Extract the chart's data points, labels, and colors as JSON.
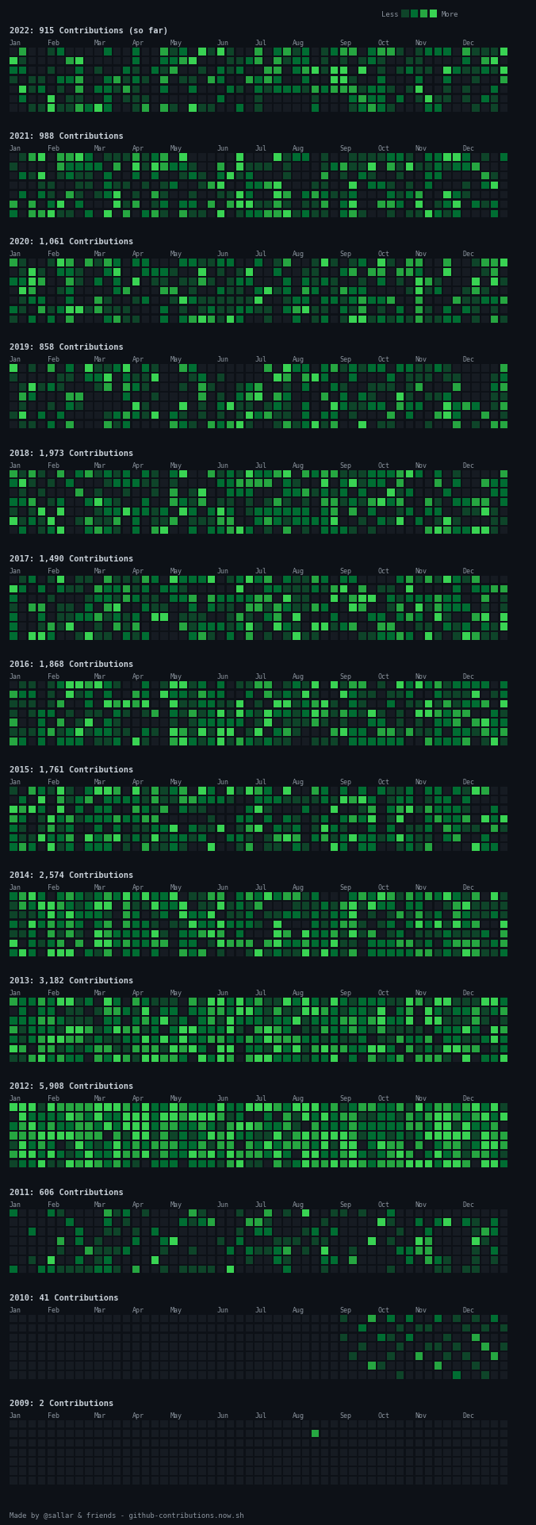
{
  "bg_color": "#0d1117",
  "cell_bg": "#161b22",
  "text_color": "#c9d1d9",
  "title_color": "#c9d1d9",
  "month_label_color": "#8b949e",
  "footer_color": "#8b949e",
  "colors": [
    "#161b22",
    "#0e4429",
    "#006d32",
    "#26a641",
    "#39d353"
  ],
  "legend_colors": [
    "#0e4429",
    "#006d32",
    "#26a641",
    "#39d353"
  ],
  "years": [
    {
      "year": 2022,
      "label": "2022: 915 Contributions (so far)",
      "seed": 42,
      "weights": [
        0.42,
        0.22,
        0.2,
        0.1,
        0.06
      ]
    },
    {
      "year": 2021,
      "label": "2021: 988 Contributions",
      "seed": 43,
      "weights": [
        0.4,
        0.22,
        0.2,
        0.11,
        0.07
      ]
    },
    {
      "year": 2020,
      "label": "2020: 1,061 Contributions",
      "seed": 44,
      "weights": [
        0.38,
        0.22,
        0.22,
        0.11,
        0.07
      ]
    },
    {
      "year": 2019,
      "label": "2019: 858 Contributions",
      "seed": 45,
      "weights": [
        0.45,
        0.22,
        0.18,
        0.1,
        0.05
      ]
    },
    {
      "year": 2018,
      "label": "2018: 1,973 Contributions",
      "seed": 46,
      "weights": [
        0.28,
        0.22,
        0.26,
        0.14,
        0.1
      ]
    },
    {
      "year": 2017,
      "label": "2017: 1,490 Contributions",
      "seed": 47,
      "weights": [
        0.35,
        0.22,
        0.24,
        0.12,
        0.07
      ]
    },
    {
      "year": 2016,
      "label": "2016: 1,868 Contributions",
      "seed": 48,
      "weights": [
        0.28,
        0.22,
        0.26,
        0.14,
        0.1
      ]
    },
    {
      "year": 2015,
      "label": "2015: 1,761 Contributions",
      "seed": 49,
      "weights": [
        0.3,
        0.22,
        0.25,
        0.13,
        0.1
      ]
    },
    {
      "year": 2014,
      "label": "2014: 2,574 Contributions",
      "seed": 50,
      "weights": [
        0.18,
        0.2,
        0.3,
        0.18,
        0.14
      ]
    },
    {
      "year": 2013,
      "label": "2013: 3,182 Contributions",
      "seed": 51,
      "weights": [
        0.1,
        0.18,
        0.32,
        0.22,
        0.18
      ]
    },
    {
      "year": 2012,
      "label": "2012: 5,908 Contributions",
      "seed": 52,
      "weights": [
        0.04,
        0.12,
        0.3,
        0.28,
        0.26
      ]
    },
    {
      "year": 2011,
      "label": "2011: 606 Contributions",
      "seed": 53,
      "weights": [
        0.62,
        0.18,
        0.12,
        0.05,
        0.03
      ]
    },
    {
      "year": 2010,
      "label": "2010: 41 Contributions",
      "seed": 54,
      "weights": null
    },
    {
      "year": 2009,
      "label": "2009: 2 Contributions",
      "seed": 55,
      "weights": null
    }
  ],
  "months": [
    "Jan",
    "Feb",
    "Mar",
    "Apr",
    "May",
    "Jun",
    "Jul",
    "Aug",
    "Sep",
    "Oct",
    "Nov",
    "Dec"
  ],
  "month_week_starts": [
    0,
    4,
    9,
    13,
    17,
    22,
    26,
    30,
    35,
    39,
    43,
    48
  ],
  "footer": "Made by @sallar & friends - github-contributions.now.sh",
  "n_weeks": 53,
  "n_days": 7,
  "fig_width": 6.76,
  "fig_height": 19.24
}
